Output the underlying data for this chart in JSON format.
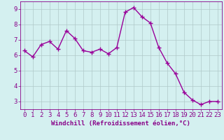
{
  "x": [
    0,
    1,
    2,
    3,
    4,
    5,
    6,
    7,
    8,
    9,
    10,
    11,
    12,
    13,
    14,
    15,
    16,
    17,
    18,
    19,
    20,
    21,
    22,
    23
  ],
  "y": [
    6.3,
    5.9,
    6.7,
    6.9,
    6.4,
    7.6,
    7.1,
    6.3,
    6.2,
    6.4,
    6.1,
    6.5,
    8.8,
    9.1,
    8.5,
    8.1,
    6.5,
    5.5,
    4.8,
    3.6,
    3.1,
    2.8,
    3.0,
    3.0
  ],
  "line_color": "#990099",
  "marker": "+",
  "marker_size": 4,
  "marker_lw": 1.0,
  "line_width": 1.0,
  "bg_color": "#d4f0f0",
  "grid_color": "#b0c8c8",
  "xlabel": "Windchill (Refroidissement éolien,°C)",
  "ylabel": "",
  "xlim": [
    -0.5,
    23.5
  ],
  "ylim": [
    2.5,
    9.5
  ],
  "yticks": [
    3,
    4,
    5,
    6,
    7,
    8,
    9
  ],
  "xticks": [
    0,
    1,
    2,
    3,
    4,
    5,
    6,
    7,
    8,
    9,
    10,
    11,
    12,
    13,
    14,
    15,
    16,
    17,
    18,
    19,
    20,
    21,
    22,
    23
  ],
  "xlabel_fontsize": 6.5,
  "tick_fontsize": 6.5,
  "xlabel_color": "#880088",
  "tick_color": "#880088",
  "spine_color": "#880088"
}
